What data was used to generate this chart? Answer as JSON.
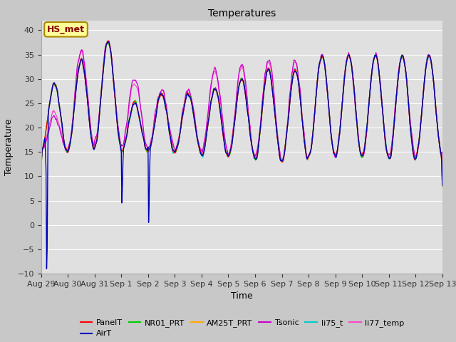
{
  "title": "Temperatures",
  "xlabel": "Time",
  "ylabel": "Temperature",
  "annotation": "HS_met",
  "ylim": [
    -10,
    42
  ],
  "yticks": [
    -10,
    -5,
    0,
    5,
    10,
    15,
    20,
    25,
    30,
    35,
    40
  ],
  "series_colors": {
    "PanelT": "#ff0000",
    "AirT": "#0000bb",
    "NR01_PRT": "#00cc00",
    "AM25T_PRT": "#ffaa00",
    "Tsonic": "#cc00cc",
    "li75_t": "#00cccc",
    "li77_temp": "#ff44cc"
  },
  "fig_bg": "#c8c8c8",
  "plot_bg": "#e0e0e0",
  "grid_color": "#ffffff",
  "annotation_bg": "#ffff99",
  "annotation_border": "#aa8800",
  "annotation_text_color": "#880000"
}
